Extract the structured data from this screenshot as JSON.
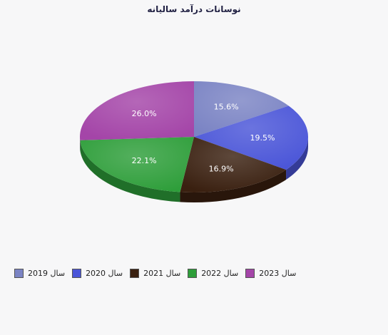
{
  "chart_data": {
    "type": "pie",
    "title": "نوسانات درآمد سالیانه",
    "categories": [
      "سال 2019",
      "سال 2020",
      "سال 2021",
      "سال 2022",
      "سال 2023"
    ],
    "values": [
      15.6,
      19.5,
      16.9,
      22.1,
      26.0
    ],
    "labels": [
      "15.6%",
      "19.5%",
      "16.9%",
      "22.1%",
      "26.0%"
    ],
    "colors": [
      "#7b84c4",
      "#4a55d8",
      "#3a2010",
      "#2e9e3a",
      "#a445a8"
    ],
    "legend_position": "bottom-left",
    "style": "3d"
  }
}
